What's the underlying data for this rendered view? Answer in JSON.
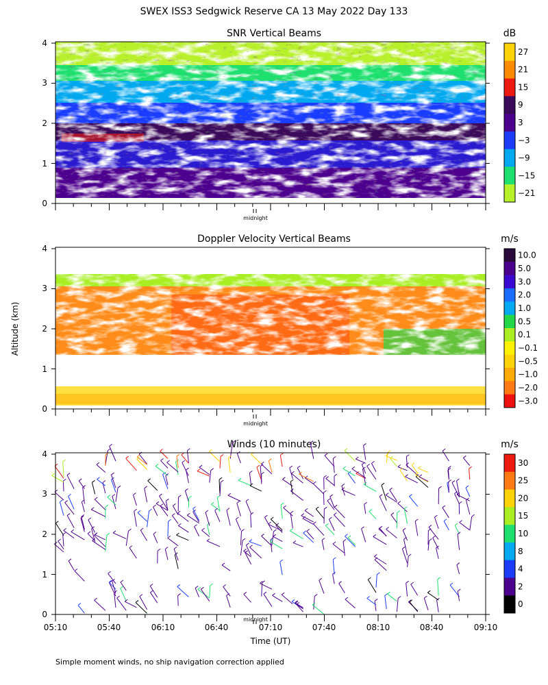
{
  "figure": {
    "main_title": "SWEX ISS3 Sedgwick Reserve CA  13 May 2022 Day 133",
    "ylabel": "Altitude (km)",
    "xlabel": "Time (UT)",
    "footnote": "Simple moment winds, no ship navigation correction applied",
    "midnight_label": "midnight"
  },
  "chart_data": [
    {
      "type": "heatmap",
      "title": "SNR Vertical Beams",
      "units": "dB",
      "ylim": [
        0,
        4
      ],
      "yticks": [
        "0",
        "1",
        "2",
        "3",
        "4"
      ],
      "colorbar": {
        "labels": [
          "27",
          "21",
          "15",
          "9",
          "3",
          "−3",
          "−9",
          "−15",
          "−21"
        ],
        "colors": [
          "#ffd200",
          "#ff8c00",
          "#ee1a10",
          "#3c0a5a",
          "#4d008e",
          "#1a3cff",
          "#00a8f0",
          "#1ee06e",
          "#b8f02a"
        ]
      },
      "layers": [
        {
          "alt_range": [
            0.1,
            0.5
          ],
          "color": "#4d008e"
        },
        {
          "alt_range": [
            0.5,
            1.6
          ],
          "color": "#2a1ad0"
        },
        {
          "alt_range": [
            1.6,
            2.1
          ],
          "color": "#3c0a5a"
        },
        {
          "alt_range": [
            2.1,
            2.8
          ],
          "color": "#1a3cff"
        },
        {
          "alt_range": [
            2.8,
            3.5
          ],
          "color": "#1ee06e"
        },
        {
          "alt_range": [
            3.5,
            4.0
          ],
          "color": "#b8f02a"
        }
      ]
    },
    {
      "type": "heatmap",
      "title": "Doppler Velocity Vertical Beams",
      "units": "m/s",
      "ylim": [
        0,
        4
      ],
      "yticks": [
        "0",
        "1",
        "2",
        "3",
        "4"
      ],
      "colorbar": {
        "labels": [
          "10.0",
          "5.0",
          "3.0",
          "2.0",
          "1.0",
          "0.5",
          "0.1",
          "−0.1",
          "−0.5",
          "−1.0",
          "−2.0",
          "−3.0"
        ],
        "colors": [
          "#2a0a3a",
          "#4d008e",
          "#3a0ad0",
          "#1a6cff",
          "#00a8f0",
          "#22d84a",
          "#a8ee22",
          "#fff200",
          "#ffd200",
          "#ffaa00",
          "#ff7a14",
          "#ee1010"
        ]
      },
      "layers": [
        {
          "alt_range": [
            0.0,
            0.5
          ],
          "color": "#ffe040"
        },
        {
          "alt_range": [
            1.7,
            3.0
          ],
          "color": "#ff8c1a"
        },
        {
          "alt_range": [
            3.0,
            3.3
          ],
          "color": "#a8ee22"
        }
      ]
    },
    {
      "type": "wind-barbs",
      "title": "Winds (10 minutes)",
      "units": "m/s",
      "ylim": [
        0,
        4
      ],
      "yticks": [
        "0",
        "1",
        "2",
        "3",
        "4"
      ],
      "xlim_minutes_utc": [
        310,
        550
      ],
      "xticks": [
        "05:10",
        "05:40",
        "06:10",
        "06:40",
        "07:10",
        "07:40",
        "08:10",
        "08:40",
        "09:10"
      ],
      "colorbar": {
        "labels": [
          "30",
          "25",
          "20",
          "15",
          "10",
          "8",
          "4",
          "2",
          "0"
        ],
        "colors": [
          "#ee1a10",
          "#ff7a14",
          "#ffd200",
          "#a8ee22",
          "#1ee06e",
          "#00a8f0",
          "#1a3cff",
          "#4d008e",
          "#000000"
        ]
      }
    }
  ]
}
